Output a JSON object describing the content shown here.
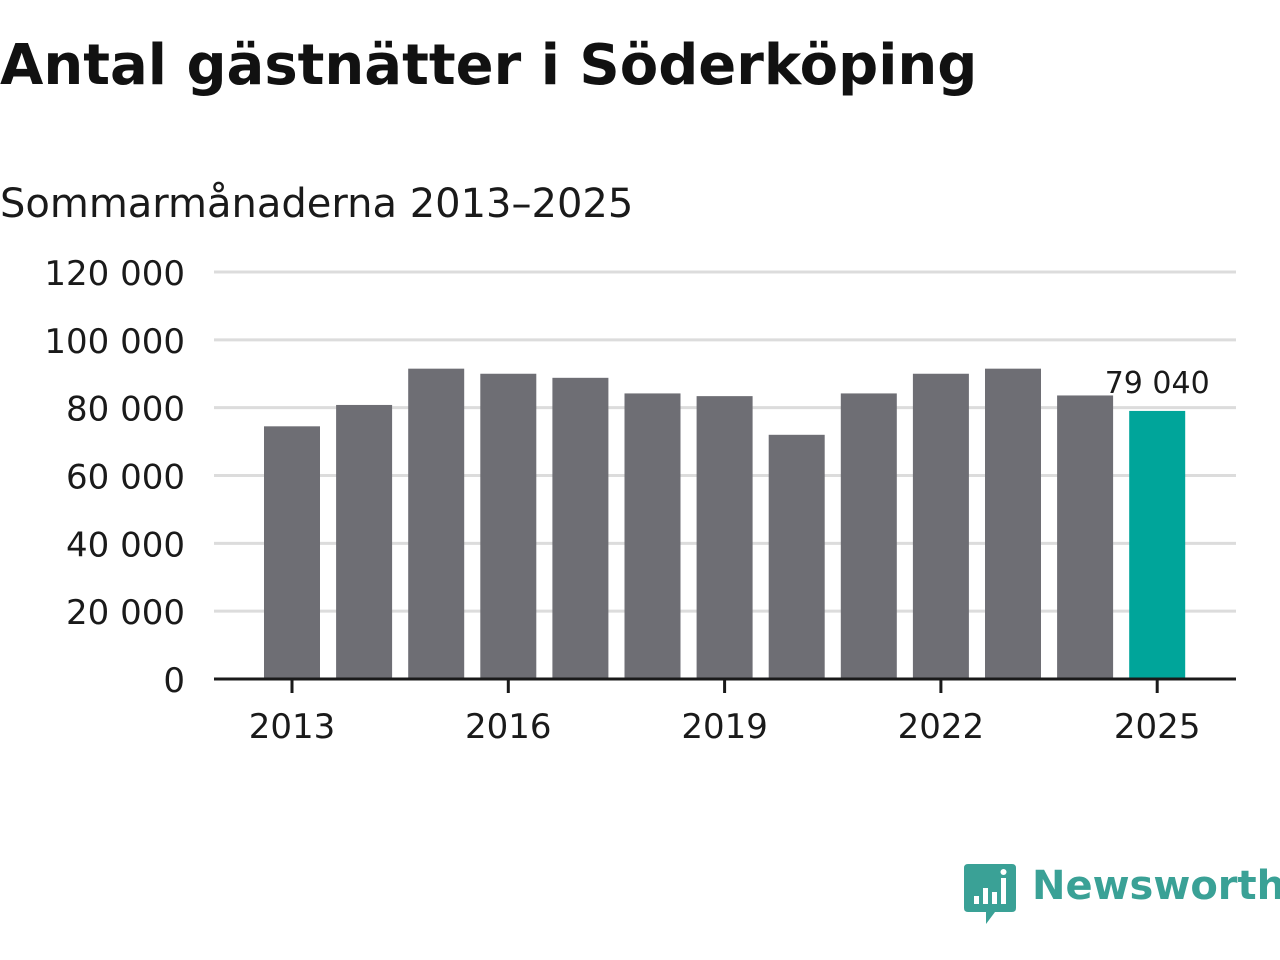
{
  "title": "Antal gästnätter i Söderköping",
  "subtitle": "Sommarmånaderna 2013–2025",
  "brand": {
    "name": "Newsworthy",
    "color": "#3aa196",
    "icon": "newsworthy-logo-icon"
  },
  "colors": {
    "bar": "#6e6e74",
    "highlight": "#00a59a",
    "grid": "#dcdcdc",
    "axis": "#1a1a1a",
    "text": "#1a1a1a"
  },
  "chart_data": {
    "type": "bar",
    "title": "Antal gästnätter i Söderköping",
    "subtitle": "Sommarmånaderna 2013–2025",
    "xlabel": "",
    "ylabel": "",
    "categories": [
      "2013",
      "2014",
      "2015",
      "2016",
      "2017",
      "2018",
      "2019",
      "2020",
      "2021",
      "2022",
      "2023",
      "2024",
      "2025"
    ],
    "values": [
      74500,
      80800,
      91500,
      90000,
      88800,
      84200,
      83400,
      72000,
      84200,
      90000,
      91500,
      83600,
      79040
    ],
    "highlight_index": 12,
    "ylim": [
      0,
      120000
    ],
    "yticks": [
      0,
      20000,
      40000,
      60000,
      80000,
      100000,
      120000
    ],
    "ytick_labels": [
      "0",
      "20 000",
      "40 000",
      "60 000",
      "80 000",
      "100 000",
      "120 000"
    ],
    "xticks_shown": [
      "2013",
      "2016",
      "2019",
      "2022",
      "2025"
    ],
    "data_labels": [
      {
        "category": "2025",
        "text": "79 040"
      }
    ],
    "grid": true,
    "legend": "none"
  }
}
